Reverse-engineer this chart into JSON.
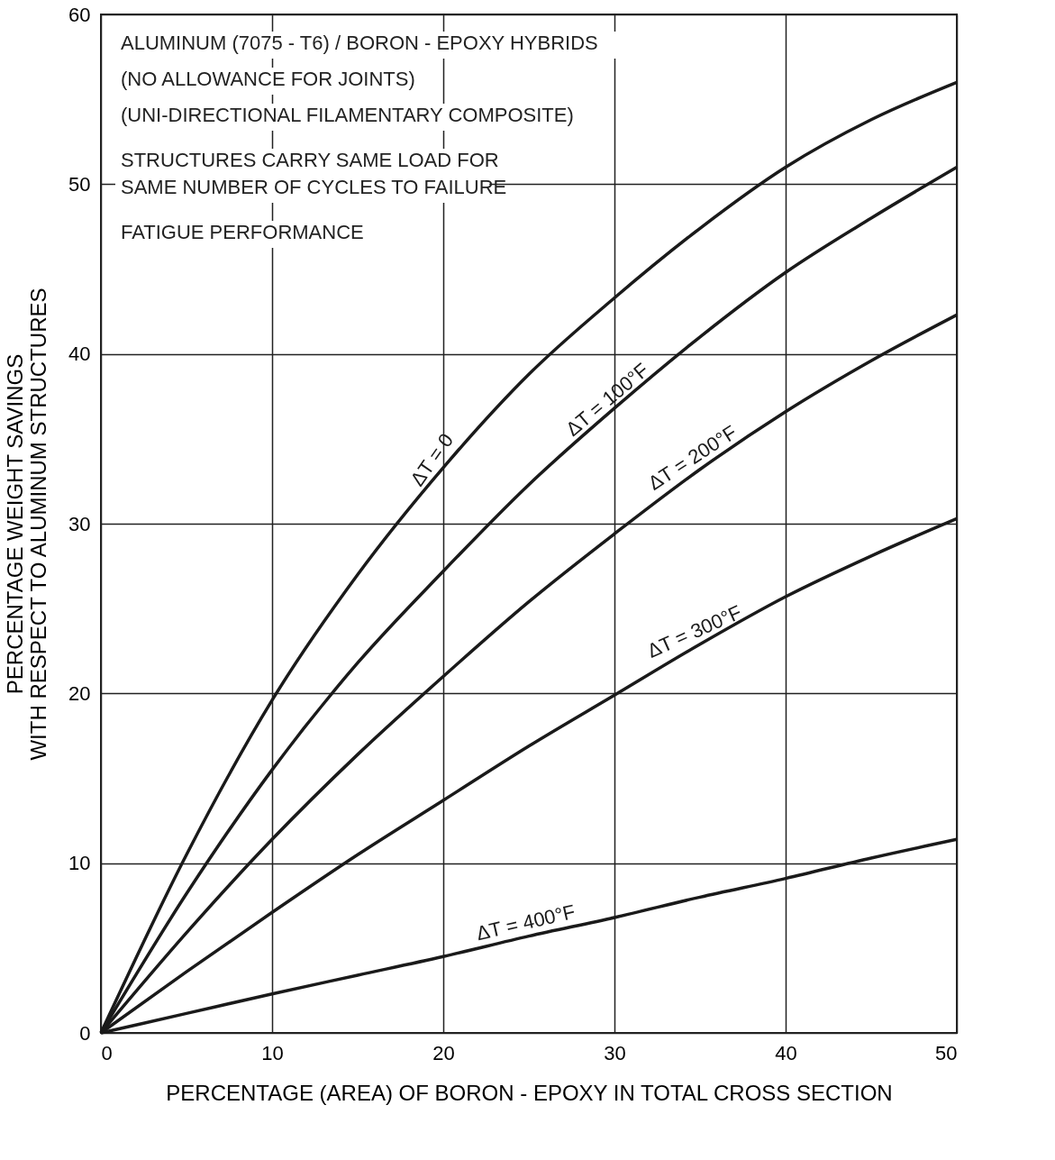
{
  "chart_data": {
    "type": "line",
    "xlabel": "PERCENTAGE (AREA) OF BORON - EPOXY IN TOTAL CROSS SECTION",
    "ylabel": "PERCENTAGE WEIGHT SAVINGS\nWITH RESPECT TO ALUMINUM STRUCTURES",
    "x": [
      0,
      5,
      10,
      15,
      20,
      25,
      30,
      35,
      40,
      45,
      50
    ],
    "series": [
      {
        "name": "ΔT = 0",
        "color": "#1a1a1a",
        "values": [
          0,
          10.5,
          19.6,
          27,
          33.3,
          38.8,
          43.3,
          47.4,
          51,
          53.8,
          56
        ]
      },
      {
        "name": "ΔT = 100°F",
        "color": "#1a1a1a",
        "values": [
          0,
          8.2,
          15.5,
          21.8,
          27.2,
          32.3,
          36.8,
          41,
          44.8,
          48,
          51
        ]
      },
      {
        "name": "ΔT = 200°F",
        "color": "#1a1a1a",
        "values": [
          0,
          5.9,
          11.4,
          16.4,
          21,
          25.4,
          29.4,
          33.2,
          36.6,
          39.6,
          42.3
        ]
      },
      {
        "name": "ΔT = 300°F",
        "color": "#1a1a1a",
        "values": [
          0,
          3.6,
          7.1,
          10.5,
          13.7,
          16.9,
          19.9,
          22.9,
          25.7,
          28.1,
          30.3
        ]
      },
      {
        "name": "ΔT = 400°F",
        "color": "#1a1a1a",
        "values": [
          0,
          1.15,
          2.3,
          3.4,
          4.5,
          5.7,
          6.8,
          8,
          9.1,
          10.3,
          11.4
        ]
      }
    ],
    "xlim": [
      0,
      50
    ],
    "ylim": [
      0,
      60
    ],
    "xticks": [
      0,
      10,
      20,
      30,
      40,
      50
    ],
    "yticks": [
      0,
      10,
      20,
      30,
      40,
      50,
      60
    ],
    "grid": true,
    "legend": false,
    "line_style": "solid",
    "marker": "none",
    "annotations": [
      "ALUMINUM (7075 - T6) / BORON - EPOXY HYBRIDS",
      "(NO ALLOWANCE FOR JOINTS)",
      "(UNI-DIRECTIONAL FILAMENTARY COMPOSITE)",
      "STRUCTURES CARRY SAME LOAD FOR",
      "SAME NUMBER OF CYCLES TO FAILURE",
      "FATIGUE PERFORMANCE"
    ]
  }
}
